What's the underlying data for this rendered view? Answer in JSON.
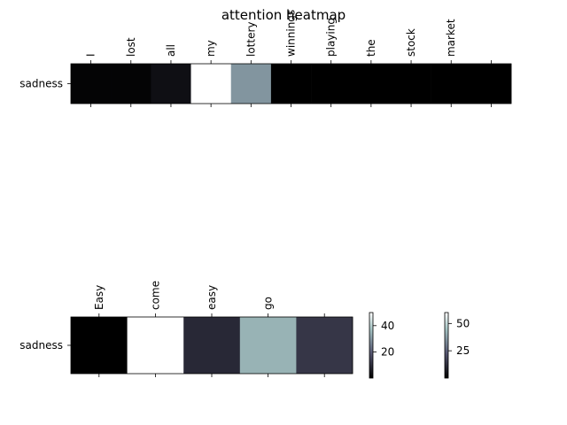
{
  "figure_title": "attention heatmap",
  "chart_data": [
    {
      "type": "heatmap",
      "title": "attention heatmap",
      "row_labels": [
        "sadness"
      ],
      "col_labels": [
        "I",
        "lost",
        "all",
        "my",
        "lottery",
        "winnings",
        "playing",
        "the",
        "stock",
        "market",
        ""
      ],
      "values": [
        [
          1,
          1,
          4,
          60,
          35,
          0,
          0,
          0,
          0,
          0,
          0
        ]
      ],
      "colormap": "bone",
      "vmin": 0,
      "vmax": 60,
      "colorbar_ticks": [
        25,
        50
      ]
    },
    {
      "type": "heatmap",
      "title": "",
      "row_labels": [
        "sadness"
      ],
      "col_labels": [
        "Easy",
        "come",
        "easy",
        "go",
        ""
      ],
      "values": [
        [
          0,
          50,
          9,
          34,
          12
        ]
      ],
      "colormap": "bone",
      "vmin": 0,
      "vmax": 50,
      "colorbar_ticks": [
        20,
        40
      ]
    }
  ]
}
